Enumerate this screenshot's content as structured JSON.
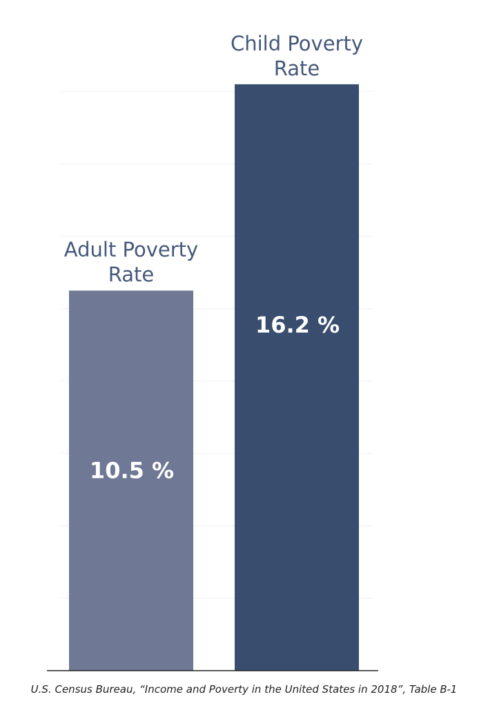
{
  "chart_data": {
    "type": "bar",
    "categories": [
      "Adult Poverty Rate",
      "Child Poverty Rate"
    ],
    "values": [
      10.5,
      16.2
    ],
    "value_labels": [
      "10.5 %",
      "16.2 %"
    ],
    "colors": [
      "#6f7894",
      "#394d6e"
    ],
    "ylim": [
      0,
      17
    ],
    "yticks": [
      0,
      2,
      4,
      6,
      8,
      10,
      12,
      14,
      16
    ],
    "grid": true,
    "source": "U.S. Census Bureau, “Income and Poverty in the United States in 2018”, Table B-1"
  }
}
